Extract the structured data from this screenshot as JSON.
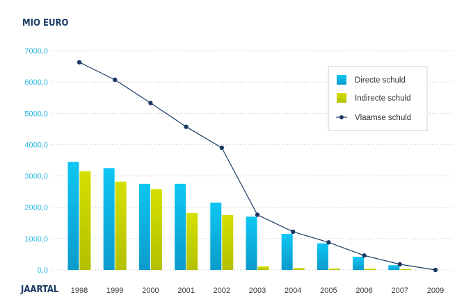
{
  "chart_data": {
    "type": "bar",
    "ylabel": "MIO EURO",
    "xlabel": "JAARTAL",
    "categories": [
      "1998",
      "1999",
      "2000",
      "2001",
      "2002",
      "2003",
      "2004",
      "2005",
      "2006",
      "2007",
      "2009"
    ],
    "yticks": [
      "0,0",
      "1000,0",
      "2000,0",
      "3000,0",
      "4000,0",
      "5000,0",
      "6000,0",
      "7000,0"
    ],
    "ylim": [
      0,
      7000
    ],
    "grid": true,
    "legend_position": "top-right",
    "series": [
      {
        "name": "Directe schuld",
        "kind": "bar",
        "color": "#00b9e8",
        "values": [
          3450,
          3250,
          2750,
          2750,
          2150,
          1700,
          1150,
          850,
          420,
          150,
          0
        ]
      },
      {
        "name": "Indirecte schuld",
        "kind": "bar",
        "color": "#c9d600",
        "values": [
          3150,
          2820,
          2580,
          1820,
          1750,
          110,
          60,
          40,
          40,
          30,
          0
        ]
      },
      {
        "name": "Vlaamse schuld",
        "kind": "line",
        "color": "#1b3a63",
        "values": [
          6630,
          6070,
          5330,
          4570,
          3900,
          1760,
          1220,
          880,
          460,
          180,
          0
        ]
      }
    ]
  }
}
